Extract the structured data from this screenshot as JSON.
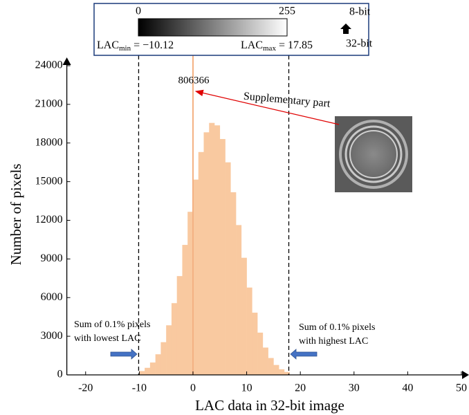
{
  "chart_data": {
    "type": "histogram",
    "xlabel": "LAC data in 32-bit image",
    "ylabel": "Number of pixels",
    "bins": [
      -10,
      -9,
      -8,
      -7,
      -6,
      -5,
      -4,
      -3,
      -2,
      -1,
      0,
      1,
      2,
      3,
      4,
      5,
      6,
      7,
      8,
      9,
      10,
      11,
      12,
      13,
      14,
      15,
      16,
      17,
      18
    ],
    "values": [
      300,
      550,
      960,
      1600,
      2540,
      3850,
      5570,
      7670,
      10090,
      12660,
      15160,
      17300,
      18830,
      19560,
      19370,
      18310,
      16500,
      14180,
      11630,
      9090,
      6780,
      4830,
      3280,
      2120,
      1310,
      770,
      435,
      230
    ],
    "color": "#f9c9a0",
    "spike": {
      "x": 0,
      "value": 806366,
      "color": "#f4b183"
    },
    "xlim": [
      -23.5,
      50
    ],
    "xticks": [
      -20,
      -10,
      0,
      10,
      20,
      30,
      40,
      50
    ],
    "ylim": [
      0,
      24000
    ],
    "yticks": [
      0,
      3000,
      6000,
      9000,
      12000,
      15000,
      18000,
      21000,
      24000
    ],
    "bounds": [
      {
        "symbol": "LAC",
        "subscript": "min",
        "value": -10.12,
        "label": "= −10.12"
      },
      {
        "symbol": "LAC",
        "subscript": "max",
        "value": 17.85,
        "label": "= 17.85"
      }
    ],
    "colorbar": {
      "lim": [
        0,
        255
      ],
      "ticks": [
        0,
        255
      ],
      "upper_label": "8-bit",
      "lower_label": "32-bit"
    },
    "inset_label": "Supplementary part",
    "notes": [
      {
        "lines": [
          "Sum of 0.1% pixels",
          "with lowest LAC"
        ]
      },
      {
        "lines": [
          "Sum of 0.1% pixels",
          "with highest LAC"
        ]
      }
    ]
  }
}
